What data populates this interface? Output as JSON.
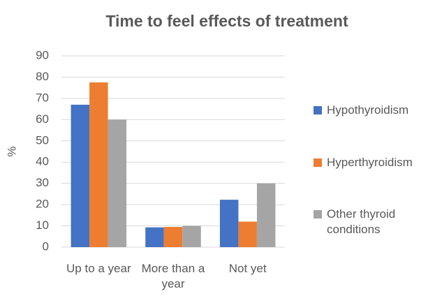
{
  "chart_data": {
    "type": "bar",
    "title": "Time to feel effects of treatment",
    "y_label": "%",
    "categories": [
      "Up to a year",
      "More than a year",
      "Not yet"
    ],
    "series": [
      {
        "name": "Hypothyroidism",
        "color": "#4472c4",
        "values": [
          67,
          9.3,
          22.3
        ]
      },
      {
        "name": "Hyperthyroidism",
        "color": "#ed7d31",
        "values": [
          77.5,
          9.5,
          12
        ]
      },
      {
        "name": "Other thyroid conditions",
        "color": "#a5a5a5",
        "values": [
          60,
          10,
          30
        ]
      }
    ],
    "ylim": [
      0,
      90
    ],
    "yticks": [
      0,
      10,
      20,
      30,
      40,
      50,
      60,
      70,
      80,
      90
    ],
    "grid": true,
    "legend": "right"
  }
}
